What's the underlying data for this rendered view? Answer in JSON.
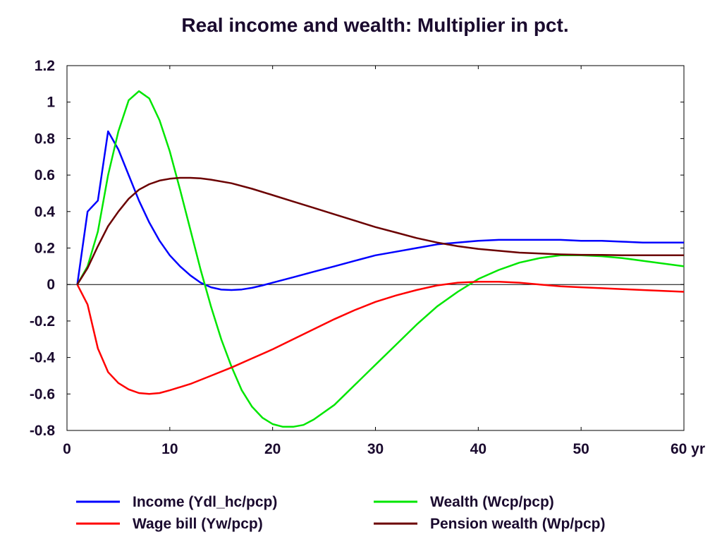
{
  "chart_data": {
    "type": "line",
    "title": "Real income and wealth: Multiplier in pct.",
    "x_unit_label": "yr",
    "xlim": [
      0,
      60
    ],
    "ylim": [
      -0.8,
      1.2
    ],
    "x_ticks": [
      0,
      10,
      20,
      30,
      40,
      50,
      60
    ],
    "x_tick_labels": [
      "0",
      "10",
      "20",
      "30",
      "40",
      "50",
      "60 yr"
    ],
    "y_ticks": [
      -0.8,
      -0.6,
      -0.4,
      -0.2,
      0,
      0.2,
      0.4,
      0.6,
      0.8,
      1,
      1.2
    ],
    "y_tick_labels": [
      "-0.8",
      "-0.6",
      "-0.4",
      "-0.2",
      "0",
      "0.2",
      "0.4",
      "0.6",
      "0.8",
      "1",
      "1.2"
    ],
    "grid": false,
    "zero_line": true,
    "legend_position": "bottom",
    "series": [
      {
        "name": "Income (Ydl_hc/pcp)",
        "color": "#0000ff",
        "points": [
          [
            1,
            0
          ],
          [
            2,
            0.4
          ],
          [
            3,
            0.46
          ],
          [
            4,
            0.84
          ],
          [
            5,
            0.74
          ],
          [
            6,
            0.6
          ],
          [
            7,
            0.46
          ],
          [
            8,
            0.34
          ],
          [
            9,
            0.24
          ],
          [
            10,
            0.16
          ],
          [
            11,
            0.1
          ],
          [
            12,
            0.05
          ],
          [
            13,
            0.01
          ],
          [
            14,
            -0.015
          ],
          [
            15,
            -0.028
          ],
          [
            16,
            -0.03
          ],
          [
            17,
            -0.027
          ],
          [
            18,
            -0.018
          ],
          [
            19,
            -0.005
          ],
          [
            20,
            0.01
          ],
          [
            22,
            0.04
          ],
          [
            24,
            0.07
          ],
          [
            26,
            0.1
          ],
          [
            28,
            0.13
          ],
          [
            30,
            0.16
          ],
          [
            32,
            0.18
          ],
          [
            34,
            0.2
          ],
          [
            36,
            0.22
          ],
          [
            38,
            0.23
          ],
          [
            40,
            0.24
          ],
          [
            42,
            0.245
          ],
          [
            44,
            0.245
          ],
          [
            46,
            0.245
          ],
          [
            48,
            0.245
          ],
          [
            50,
            0.24
          ],
          [
            52,
            0.24
          ],
          [
            54,
            0.235
          ],
          [
            56,
            0.23
          ],
          [
            58,
            0.23
          ],
          [
            60,
            0.23
          ]
        ]
      },
      {
        "name": "Wealth (Wcp/pcp)",
        "color": "#00e600",
        "points": [
          [
            1,
            0
          ],
          [
            2,
            0.1
          ],
          [
            3,
            0.29
          ],
          [
            4,
            0.6
          ],
          [
            5,
            0.84
          ],
          [
            6,
            1.01
          ],
          [
            7,
            1.06
          ],
          [
            8,
            1.02
          ],
          [
            9,
            0.9
          ],
          [
            10,
            0.73
          ],
          [
            11,
            0.52
          ],
          [
            12,
            0.3
          ],
          [
            13,
            0.08
          ],
          [
            14,
            -0.12
          ],
          [
            15,
            -0.3
          ],
          [
            16,
            -0.45
          ],
          [
            17,
            -0.58
          ],
          [
            18,
            -0.67
          ],
          [
            19,
            -0.73
          ],
          [
            20,
            -0.765
          ],
          [
            21,
            -0.78
          ],
          [
            22,
            -0.78
          ],
          [
            23,
            -0.77
          ],
          [
            24,
            -0.74
          ],
          [
            26,
            -0.66
          ],
          [
            28,
            -0.55
          ],
          [
            30,
            -0.44
          ],
          [
            32,
            -0.33
          ],
          [
            34,
            -0.22
          ],
          [
            36,
            -0.12
          ],
          [
            38,
            -0.04
          ],
          [
            40,
            0.03
          ],
          [
            42,
            0.08
          ],
          [
            44,
            0.12
          ],
          [
            46,
            0.145
          ],
          [
            48,
            0.16
          ],
          [
            50,
            0.16
          ],
          [
            52,
            0.155
          ],
          [
            54,
            0.145
          ],
          [
            56,
            0.13
          ],
          [
            58,
            0.115
          ],
          [
            60,
            0.1
          ]
        ]
      },
      {
        "name": "Wage bill (Yw/pcp)",
        "color": "#ff0000",
        "points": [
          [
            1,
            0
          ],
          [
            2,
            -0.11
          ],
          [
            3,
            -0.35
          ],
          [
            4,
            -0.48
          ],
          [
            5,
            -0.54
          ],
          [
            6,
            -0.575
          ],
          [
            7,
            -0.595
          ],
          [
            8,
            -0.6
          ],
          [
            9,
            -0.595
          ],
          [
            10,
            -0.58
          ],
          [
            12,
            -0.545
          ],
          [
            14,
            -0.5
          ],
          [
            16,
            -0.455
          ],
          [
            18,
            -0.405
          ],
          [
            20,
            -0.355
          ],
          [
            22,
            -0.3
          ],
          [
            24,
            -0.245
          ],
          [
            26,
            -0.19
          ],
          [
            28,
            -0.14
          ],
          [
            30,
            -0.095
          ],
          [
            32,
            -0.06
          ],
          [
            34,
            -0.03
          ],
          [
            36,
            -0.005
          ],
          [
            38,
            0.01
          ],
          [
            40,
            0.015
          ],
          [
            42,
            0.015
          ],
          [
            44,
            0.01
          ],
          [
            46,
            0
          ],
          [
            48,
            -0.01
          ],
          [
            50,
            -0.015
          ],
          [
            52,
            -0.02
          ],
          [
            54,
            -0.025
          ],
          [
            56,
            -0.03
          ],
          [
            58,
            -0.035
          ],
          [
            60,
            -0.04
          ]
        ]
      },
      {
        "name": "Pension wealth (Wp/pcp)",
        "color": "#6b0000",
        "points": [
          [
            1,
            0
          ],
          [
            2,
            0.09
          ],
          [
            3,
            0.21
          ],
          [
            4,
            0.32
          ],
          [
            5,
            0.4
          ],
          [
            6,
            0.47
          ],
          [
            7,
            0.52
          ],
          [
            8,
            0.55
          ],
          [
            9,
            0.57
          ],
          [
            10,
            0.58
          ],
          [
            11,
            0.585
          ],
          [
            12,
            0.585
          ],
          [
            13,
            0.582
          ],
          [
            14,
            0.575
          ],
          [
            16,
            0.555
          ],
          [
            18,
            0.525
          ],
          [
            20,
            0.49
          ],
          [
            22,
            0.455
          ],
          [
            24,
            0.42
          ],
          [
            26,
            0.385
          ],
          [
            28,
            0.35
          ],
          [
            30,
            0.315
          ],
          [
            32,
            0.285
          ],
          [
            34,
            0.255
          ],
          [
            36,
            0.23
          ],
          [
            38,
            0.21
          ],
          [
            40,
            0.195
          ],
          [
            42,
            0.185
          ],
          [
            44,
            0.175
          ],
          [
            46,
            0.17
          ],
          [
            48,
            0.165
          ],
          [
            50,
            0.163
          ],
          [
            52,
            0.162
          ],
          [
            54,
            0.16
          ],
          [
            56,
            0.16
          ],
          [
            58,
            0.16
          ],
          [
            60,
            0.16
          ]
        ]
      }
    ]
  }
}
